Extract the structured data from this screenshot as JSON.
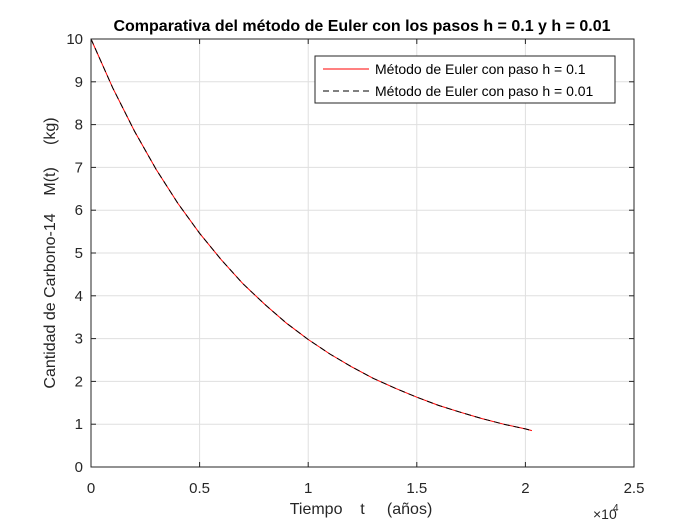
{
  "chart_data": {
    "type": "line",
    "title": "Comparativa del método de Euler con los pasos h = 0.1 y h = 0.01",
    "xlabel": "Tiempo    t     (años)",
    "ylabel": "Cantidad de Carbono-14    M(t)     (kg)",
    "xlim": [
      0,
      25000
    ],
    "ylim": [
      0,
      10
    ],
    "x_ticks": [
      0,
      5000,
      10000,
      15000,
      20000,
      25000
    ],
    "x_tick_labels": [
      "0",
      "0.5",
      "1",
      "1.5",
      "2",
      "2.5"
    ],
    "x_exponent_base": "×10",
    "x_exponent_power": "4",
    "y_ticks": [
      0,
      1,
      2,
      3,
      4,
      5,
      6,
      7,
      8,
      9,
      10
    ],
    "y_tick_labels": [
      "0",
      "1",
      "2",
      "3",
      "4",
      "5",
      "6",
      "7",
      "8",
      "9",
      "10"
    ],
    "grid": true,
    "legend_position": "top-right",
    "series": [
      {
        "name": "Método de Euler con paso h = 0.1",
        "color": "#ff0000",
        "style": "solid",
        "x": [
          0,
          1000,
          2000,
          3000,
          4000,
          5000,
          6000,
          7000,
          8000,
          9000,
          10000,
          11000,
          12000,
          13000,
          14000,
          15000,
          16000,
          17000,
          18000,
          19000,
          20000,
          20300
        ],
        "y": [
          10,
          8.86,
          7.85,
          6.95,
          6.16,
          5.46,
          4.84,
          4.28,
          3.8,
          3.36,
          2.98,
          2.64,
          2.34,
          2.07,
          1.84,
          1.63,
          1.44,
          1.28,
          1.13,
          1.0,
          0.89,
          0.85
        ]
      },
      {
        "name": "Método de Euler con paso h = 0.01",
        "color": "#000000",
        "style": "dashed",
        "x": [
          0,
          1000,
          2000,
          3000,
          4000,
          5000,
          6000,
          7000,
          8000,
          9000,
          10000,
          11000,
          12000,
          13000,
          14000,
          15000,
          16000,
          17000,
          18000,
          19000,
          20000,
          20300
        ],
        "y": [
          10,
          8.86,
          7.85,
          6.95,
          6.16,
          5.46,
          4.84,
          4.28,
          3.8,
          3.36,
          2.98,
          2.64,
          2.34,
          2.07,
          1.84,
          1.63,
          1.44,
          1.28,
          1.13,
          1.0,
          0.89,
          0.85
        ]
      }
    ]
  }
}
